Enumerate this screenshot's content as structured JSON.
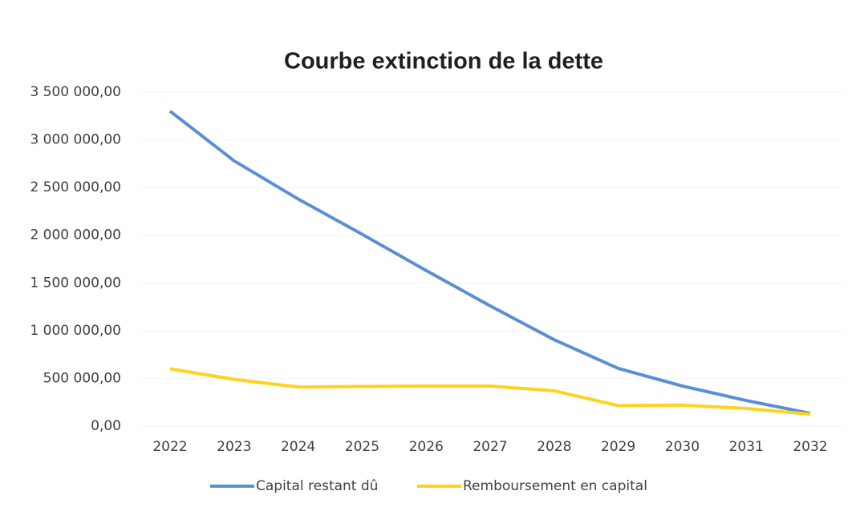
{
  "chart_data": {
    "type": "line",
    "title": "Courbe extinction de la dette",
    "categories": [
      "2022",
      "2023",
      "2024",
      "2025",
      "2026",
      "2027",
      "2028",
      "2029",
      "2030",
      "2031",
      "2032"
    ],
    "series": [
      {
        "name": "Capital restant dû",
        "color": "#5b8fd4",
        "values": [
          3300000,
          2780000,
          2380000,
          2010000,
          1630000,
          1260000,
          905000,
          605000,
          420000,
          268000,
          134000
        ]
      },
      {
        "name": "Remboursement en capital",
        "color": "#ffd21f",
        "values": [
          600000,
          490000,
          410000,
          415000,
          420000,
          420000,
          370000,
          215000,
          220000,
          185000,
          125000
        ]
      }
    ],
    "ylim": [
      0,
      3500000
    ],
    "yticks": [
      {
        "value": 0,
        "label": "0,00"
      },
      {
        "value": 500000,
        "label": "500 000,00"
      },
      {
        "value": 1000000,
        "label": "1 000 000,00"
      },
      {
        "value": 1500000,
        "label": "1 500 000,00"
      },
      {
        "value": 2000000,
        "label": "2 000 000,00"
      },
      {
        "value": 2500000,
        "label": "2 500 000,00"
      },
      {
        "value": 3000000,
        "label": "3 000 000,00"
      },
      {
        "value": 3500000,
        "label": "3 500 000,00"
      }
    ],
    "grid": true,
    "legend": "bottom"
  }
}
